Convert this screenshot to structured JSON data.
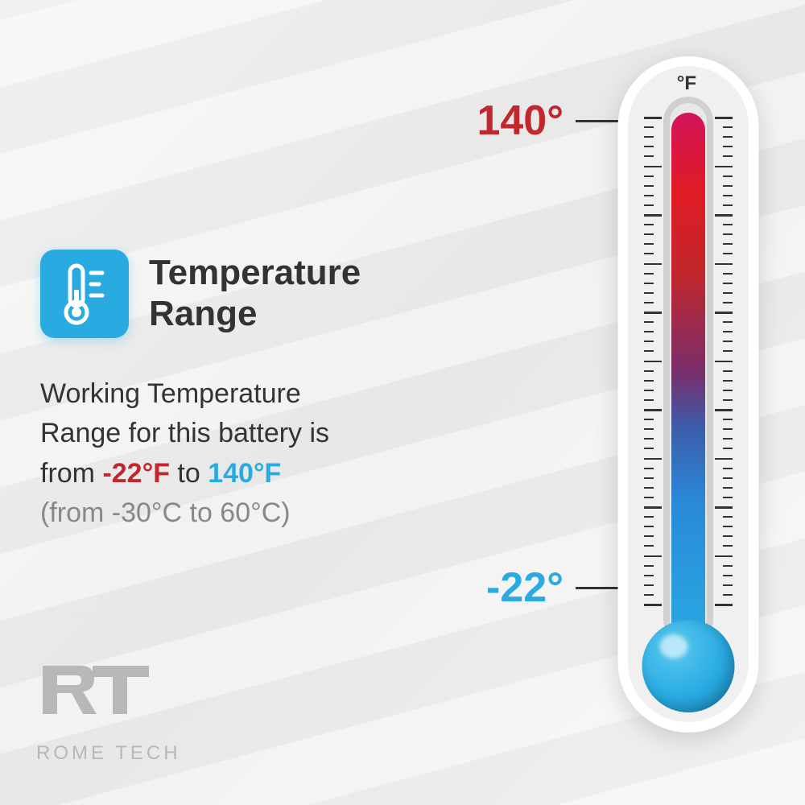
{
  "title": "Temperature\nRange",
  "body": {
    "line1": "Working Temperature",
    "line2": "Range for this battery is",
    "line3_prefix": "from ",
    "cold_value": "-22°F",
    "line3_mid": " to ",
    "hot_value": "140°F",
    "celsius": "(from -30°C to 60°C)"
  },
  "thermometer": {
    "unit": "°F",
    "high_label": "140°",
    "low_label": "-22°",
    "high_color": "#c1272d",
    "low_color": "#29abe2",
    "gradient_top": "#d4145a",
    "gradient_bottom": "#29abe2",
    "bulb_color": "#29abe2",
    "tick_count": 50,
    "major_every": 5
  },
  "icon": {
    "bg_color": "#29abe2"
  },
  "logo": {
    "mark": "RT",
    "text": "ROME TECH"
  }
}
